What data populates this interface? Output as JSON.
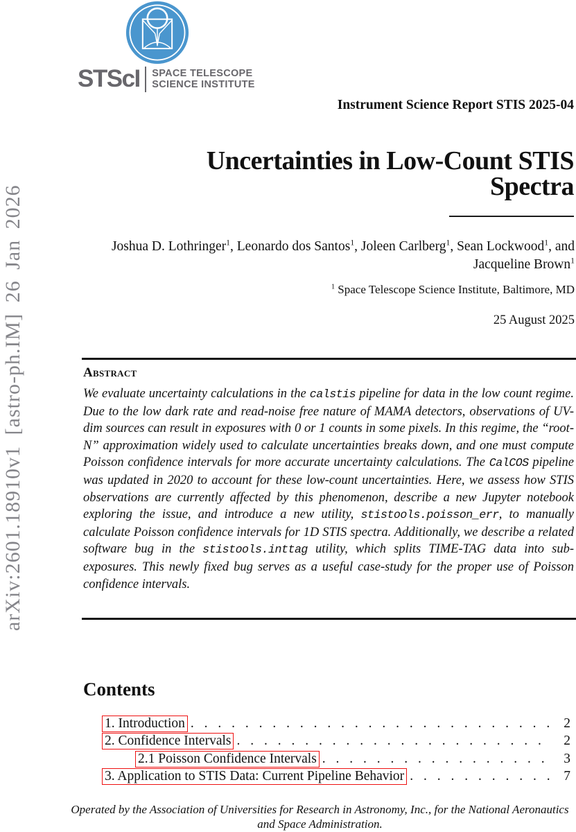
{
  "logo": {
    "wordmark": "STScI",
    "org_line1": "SPACE TELESCOPE",
    "org_line2": "SCIENCE INSTITUTE",
    "brand_blue": "#4a96ce",
    "text_gray": "#68676c"
  },
  "watermark": {
    "arxiv_label": "arXiv:2601.18910v1 [astro-ph.IM] 26 Jan 2026"
  },
  "header": {
    "report_label": "Instrument Science Report STIS 2025-04",
    "title_line1": "Uncertainties in Low-Count STIS",
    "title_line2": "Spectra",
    "date": "25 August 2025"
  },
  "authors": {
    "segments": [
      {
        "t": "Joshua D. Lothringer"
      },
      {
        "t": "1",
        "sup": true
      },
      {
        "t": ", Leonardo dos Santos"
      },
      {
        "t": "1",
        "sup": true
      },
      {
        "t": ", Joleen Carlberg"
      },
      {
        "t": "1",
        "sup": true
      },
      {
        "t": ", Sean Lockwood"
      },
      {
        "t": "1",
        "sup": true
      },
      {
        "t": ", and"
      },
      {
        "br": true
      },
      {
        "t": "Jacqueline Brown"
      },
      {
        "t": "1",
        "sup": true
      }
    ]
  },
  "affiliation": {
    "segments": [
      {
        "t": "1",
        "sup": true
      },
      {
        "t": " Space Telescope Science Institute, Baltimore, MD"
      }
    ]
  },
  "abstract": {
    "heading": "Abstract",
    "segments": [
      {
        "t": "We evaluate uncertainty calculations in the "
      },
      {
        "t": "calstis",
        "mono": true
      },
      {
        "t": " pipeline for data in the low count regime. Due to the low dark rate and read-noise free nature of MAMA detectors, observations of UV-dim sources can result in exposures with 0 or 1 counts in some pixels.  In this regime, the “root-N” approximation widely used to calculate uncertainties breaks down, and one must compute Poisson confidence intervals for more accurate uncertainty calculations. The "
      },
      {
        "t": "CalCOS",
        "mono": true
      },
      {
        "t": " pipeline was updated in 2020 to account for these low-count uncertainties. Here, we assess how STIS observations are currently affected by this phenomenon, describe a new Jupyter notebook exploring the issue, and introduce a new utility, "
      },
      {
        "t": "stistools.poisson_err",
        "mono": true
      },
      {
        "t": ", to manually calculate Poisson confidence intervals for 1D STIS spectra. Additionally, we describe a related software bug in the "
      },
      {
        "t": "stistools.inttag",
        "mono": true
      },
      {
        "t": " utility, which splits TIME-TAG data into sub-exposures.  This newly fixed bug serves as a useful case-study for the proper use of Poisson confidence intervals."
      }
    ]
  },
  "contents": {
    "heading": "Contents",
    "link_color": "#ee1111",
    "entries": [
      {
        "label": "1. Introduction",
        "page": "2",
        "level": 0
      },
      {
        "label": "2. Confidence Intervals",
        "page": "2",
        "level": 0
      },
      {
        "label": "2.1 Poisson Confidence Intervals",
        "page": "3",
        "level": 1
      },
      {
        "label": "3. Application to STIS Data: Current Pipeline Behavior",
        "page": "7",
        "level": 0
      }
    ]
  },
  "footer": {
    "text": "Operated by the Association of Universities for Research in Astronomy, Inc., for the National Aeronautics and Space Administration."
  }
}
